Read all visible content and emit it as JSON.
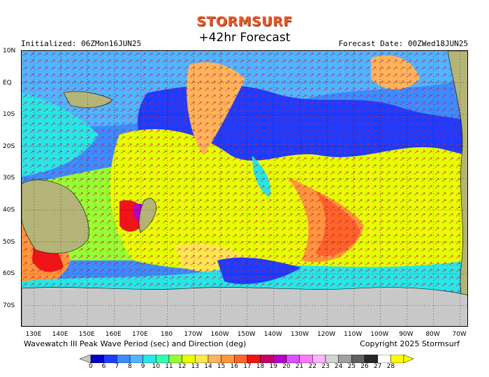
{
  "header": {
    "brand": "STORMSURF",
    "title": "+42hr Forecast",
    "initialized": "Initialized: 06ZMon16JUN25",
    "forecast_date": "Forecast Date: 00ZWed18JUN25"
  },
  "map": {
    "lat_labels": [
      "10N",
      "EQ",
      "10S",
      "20S",
      "30S",
      "40S",
      "50S",
      "60S",
      "70S"
    ],
    "lon_labels": [
      "130E",
      "140E",
      "150E",
      "160E",
      "170E",
      "180",
      "170W",
      "160W",
      "150W",
      "140W",
      "130W",
      "120W",
      "110W",
      "100W",
      "90W",
      "80W",
      "70W"
    ]
  },
  "footer": {
    "description": "Wavewatch III Peak Wave Period (sec) and Direction (deg)",
    "copyright": "Copyright 2025 Stormsurf"
  },
  "scale": {
    "labels": [
      "0",
      "6",
      "7",
      "8",
      "9",
      "10",
      "11",
      "12",
      "13",
      "14",
      "15",
      "16",
      "17",
      "18",
      "19",
      "20",
      "21",
      "22",
      "23",
      "24",
      "25",
      "26",
      "27",
      "28"
    ],
    "colors": [
      "#0000c8",
      "#1e3cff",
      "#3c8cff",
      "#50b4ff",
      "#28e6e6",
      "#32ffb4",
      "#96ff32",
      "#e6ff00",
      "#ffe650",
      "#ffb45a",
      "#ff963c",
      "#ff6428",
      "#f01414",
      "#c80064",
      "#b400c8",
      "#dc50ff",
      "#ff78ff",
      "#ffb4ff",
      "#d2d2d2",
      "#a0a0a0",
      "#606060",
      "#282828",
      "#ffffff",
      "#ffff00"
    ]
  }
}
